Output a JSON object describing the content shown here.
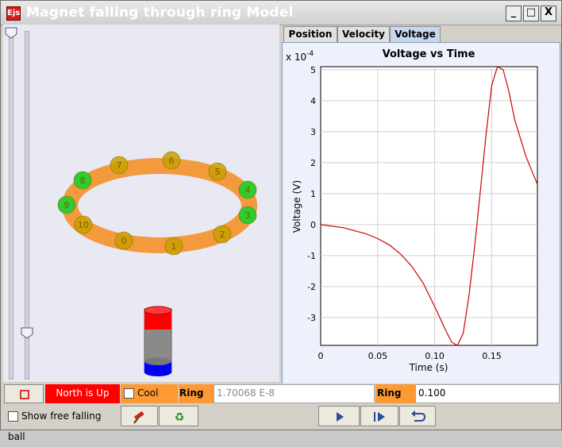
{
  "window": {
    "title": "Magnet falling through ring Model",
    "icon_label": "Ejs",
    "min_label": "_",
    "max_label": "□",
    "close_label": "X"
  },
  "tabs": [
    {
      "label": "Position"
    },
    {
      "label": "Velocity"
    },
    {
      "label": "Voltage",
      "active": true
    }
  ],
  "ring": {
    "particle_labels": [
      "0",
      "1",
      "2",
      "3",
      "4",
      "5",
      "6",
      "7",
      "8",
      "9",
      "10"
    ]
  },
  "bottom": {
    "reset_icon": "stop-icon",
    "north_label": "North is Up",
    "cool_ring_label": "Cool ring",
    "ring_rho_label": "Ring ρ=",
    "ring_rho_value": "1.70068 E-8",
    "ring_phi_label": "Ring Φ=",
    "ring_phi_value": "0.100",
    "show_ball_label": "Show free falling ball",
    "hammer_icon": "hammer-icon",
    "recycle_icon": "recycle-icon",
    "play_icon": "play-icon",
    "step_icon": "step-icon",
    "reset_view_icon": "reset-icon"
  },
  "colors": {
    "accent_red": "#ff0000",
    "orange": "#ff9933",
    "ring_color": "#f39a3c",
    "magnet_red": "#ff0000",
    "magnet_blue": "#0000ff",
    "plot_line": "#cc0000"
  },
  "chart_data": {
    "type": "line",
    "title": "Voltage vs Time",
    "exponent_label": "x 10",
    "exponent_power": "-4",
    "xlabel": "Time (s)",
    "ylabel": "Voltage (V)",
    "xlim": [
      0,
      0.19
    ],
    "ylim": [
      -3.9,
      5.1
    ],
    "xticks": [
      0,
      0.05,
      0.1,
      0.15
    ],
    "xtick_labels": [
      "0",
      "0.05",
      "0.10",
      "0.15"
    ],
    "yticks": [
      -3,
      -2,
      -1,
      0,
      1,
      2,
      3,
      4,
      5
    ],
    "ytick_labels": [
      "-3",
      "-2",
      "-1",
      "0",
      "1",
      "2",
      "3",
      "4",
      "5"
    ],
    "grid": true,
    "series": [
      {
        "x": [
          0,
          0.02,
          0.04,
          0.05,
          0.06,
          0.07,
          0.08,
          0.09,
          0.1,
          0.11,
          0.115,
          0.12,
          0.125,
          0.13,
          0.135,
          0.14,
          0.145,
          0.15,
          0.155,
          0.16,
          0.165,
          0.17,
          0.18,
          0.19
        ],
        "y": [
          0,
          -0.1,
          -0.3,
          -0.45,
          -0.65,
          -0.95,
          -1.35,
          -1.9,
          -2.65,
          -3.45,
          -3.8,
          -3.9,
          -3.5,
          -2.3,
          -0.7,
          1.1,
          2.9,
          4.5,
          5.1,
          5.0,
          4.3,
          3.4,
          2.2,
          1.3
        ]
      }
    ]
  }
}
